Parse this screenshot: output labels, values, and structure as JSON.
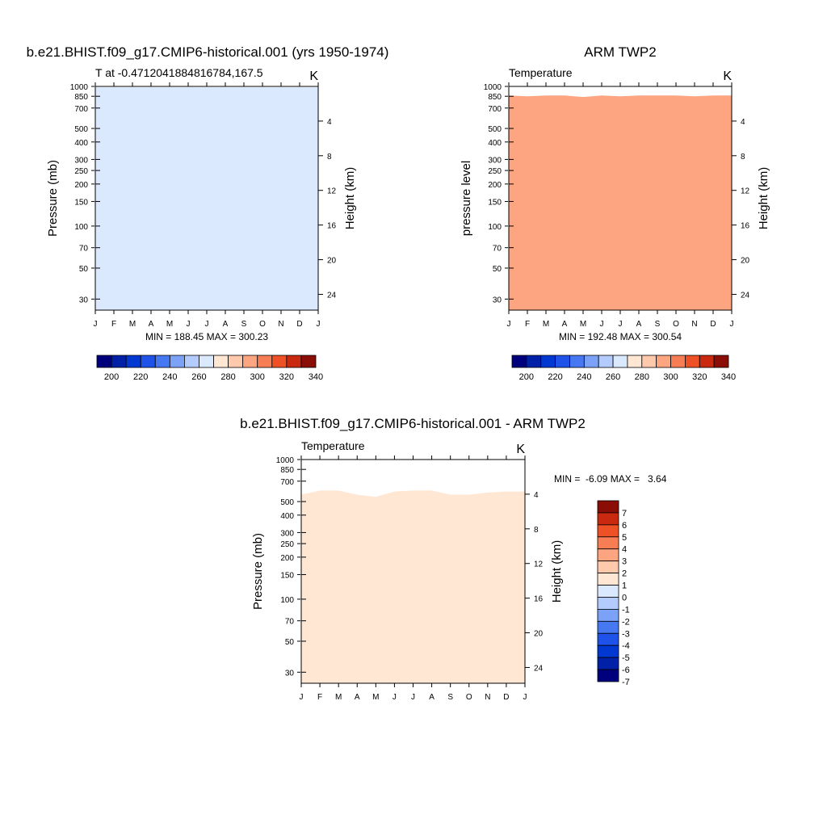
{
  "colors": {
    "abs_palette": [
      "#00007d",
      "#0021a7",
      "#0038d1",
      "#1f52e8",
      "#4678f2",
      "#7ca2f8",
      "#b4ccfd",
      "#dbe9ff",
      "#ffe7d4",
      "#ffc9ac",
      "#fda480",
      "#f77d55",
      "#ee5126",
      "#c8290f",
      "#8a0e05"
    ],
    "diff_palette": [
      "#00007d",
      "#0021a7",
      "#0038d1",
      "#1f52e8",
      "#4678f2",
      "#7ca2f8",
      "#b4ccfd",
      "#dbe9ff",
      "#ffe7d4",
      "#ffc9ac",
      "#fda480",
      "#f77d55",
      "#ee5126",
      "#c8290f",
      "#8a0e05"
    ]
  },
  "chart_data": [
    {
      "type": "heatmap",
      "title": "b.e21.BHIST.f09_g17.CMIP6-historical.001 (yrs 1950-1974)",
      "left_label": "T at -0.4712041884816784,167.5",
      "right_label": "K",
      "ylabel": "Pressure (mb)",
      "y2label": "Height (km)",
      "x_ticks": [
        "J",
        "F",
        "M",
        "A",
        "M",
        "J",
        "J",
        "A",
        "S",
        "O",
        "N",
        "D",
        "J"
      ],
      "y_ticks": [
        30,
        50,
        70,
        100,
        150,
        200,
        250,
        300,
        400,
        500,
        700,
        850,
        1000
      ],
      "y2_ticks": [
        24,
        20,
        16,
        12,
        8,
        4
      ],
      "ylim": [
        1000,
        25
      ],
      "y_scale": "log",
      "stats": "MIN = 188.45 MAX = 300.23",
      "levels": [
        200,
        210,
        220,
        230,
        240,
        250,
        260,
        270,
        280,
        290,
        300,
        310,
        320,
        330,
        340
      ],
      "colorbar_labels": [
        "200",
        "220",
        "240",
        "260",
        "280",
        "300",
        "320",
        "340"
      ],
      "bands": [
        {
          "class": 2,
          "top": [
            25,
            25,
            25,
            25,
            25,
            25,
            25,
            25,
            25,
            25,
            25,
            25,
            25
          ]
        },
        {
          "class": 1,
          "top": [
            42,
            44,
            44,
            45,
            47,
            50,
            52,
            54,
            52,
            50,
            47,
            44,
            42
          ]
        },
        {
          "class": 0,
          "top": [
            60,
            60,
            61,
            62,
            64,
            66,
            69,
            70,
            68,
            65,
            63,
            61,
            60
          ]
        },
        {
          "class": 1,
          "top": [
            136,
            136,
            136,
            136,
            136,
            136,
            136,
            136,
            136,
            136,
            136,
            136,
            136
          ]
        },
        {
          "class": 2,
          "top": [
            178,
            178,
            178,
            178,
            178,
            178,
            178,
            178,
            178,
            178,
            178,
            178,
            178
          ]
        },
        {
          "class": 3,
          "top": [
            218,
            218,
            218,
            218,
            218,
            218,
            218,
            218,
            218,
            218,
            218,
            218,
            218
          ]
        },
        {
          "class": 4,
          "top": [
            262,
            262,
            262,
            262,
            262,
            262,
            262,
            262,
            262,
            262,
            262,
            262,
            262
          ]
        },
        {
          "class": 5,
          "top": [
            318,
            318,
            318,
            318,
            318,
            318,
            318,
            318,
            318,
            318,
            318,
            318,
            318
          ]
        },
        {
          "class": 6,
          "top": [
            385,
            385,
            385,
            385,
            385,
            385,
            385,
            385,
            385,
            385,
            385,
            385,
            385
          ]
        },
        {
          "class": 7,
          "top": [
            470,
            470,
            470,
            470,
            470,
            470,
            470,
            470,
            470,
            470,
            470,
            470,
            470
          ]
        },
        {
          "class": 8,
          "top": [
            575,
            575,
            575,
            575,
            575,
            575,
            575,
            575,
            575,
            575,
            575,
            575,
            575
          ]
        },
        {
          "class": 9,
          "top": [
            715,
            715,
            715,
            715,
            715,
            715,
            715,
            715,
            715,
            715,
            715,
            715,
            715
          ]
        },
        {
          "class": 10,
          "top": [
            855,
            855,
            855,
            855,
            855,
            855,
            855,
            855,
            855,
            855,
            855,
            855,
            855
          ]
        },
        {
          "class": 7,
          "top": [
            985,
            985,
            985,
            985,
            985,
            985,
            985,
            985,
            985,
            985,
            985,
            985,
            985
          ]
        }
      ]
    },
    {
      "type": "heatmap",
      "title": "ARM TWP2",
      "left_label": "Temperature",
      "right_label": "K",
      "ylabel": "pressure level",
      "y2label": "Height (km)",
      "x_ticks": [
        "J",
        "F",
        "M",
        "A",
        "M",
        "J",
        "J",
        "A",
        "S",
        "O",
        "N",
        "D",
        "J"
      ],
      "y_ticks": [
        30,
        50,
        70,
        100,
        150,
        200,
        250,
        300,
        400,
        500,
        700,
        850,
        1000
      ],
      "y2_ticks": [
        24,
        20,
        16,
        12,
        8,
        4
      ],
      "ylim": [
        1000,
        25
      ],
      "y_scale": "log",
      "stats": "MIN = 192.48 MAX = 300.54",
      "levels": [
        200,
        210,
        220,
        230,
        240,
        250,
        260,
        270,
        280,
        290,
        300,
        310,
        320,
        330,
        340
      ],
      "colorbar_labels": [
        "200",
        "220",
        "240",
        "260",
        "280",
        "300",
        "320",
        "340"
      ],
      "bands": [
        {
          "class": 2,
          "top": [
            25,
            25,
            25,
            25,
            25,
            25,
            25,
            25,
            25,
            25,
            25,
            25,
            25
          ]
        },
        {
          "class": 1,
          "top": [
            37,
            38,
            40,
            41,
            44,
            46,
            48,
            46,
            44,
            41,
            40,
            38,
            37
          ]
        },
        {
          "class": 0,
          "top": [
            62,
            63,
            64,
            66,
            69,
            72,
            78,
            80,
            74,
            68,
            64,
            62,
            61
          ]
        },
        {
          "class": 1,
          "top": [
            136,
            136,
            136,
            136,
            136,
            136,
            136,
            136,
            136,
            136,
            136,
            136,
            136
          ]
        },
        {
          "class": 2,
          "top": [
            175,
            175,
            175,
            175,
            175,
            175,
            175,
            175,
            175,
            175,
            175,
            175,
            175
          ]
        },
        {
          "class": 3,
          "top": [
            215,
            215,
            215,
            215,
            215,
            215,
            215,
            215,
            215,
            215,
            215,
            215,
            215
          ]
        },
        {
          "class": 4,
          "top": [
            258,
            258,
            258,
            258,
            258,
            258,
            258,
            258,
            258,
            258,
            258,
            258,
            258
          ]
        },
        {
          "class": 5,
          "top": [
            312,
            312,
            312,
            312,
            312,
            312,
            312,
            312,
            312,
            312,
            312,
            312,
            312
          ]
        },
        {
          "class": 6,
          "top": [
            375,
            375,
            375,
            375,
            375,
            375,
            375,
            375,
            375,
            375,
            375,
            375,
            375
          ]
        },
        {
          "class": 7,
          "top": [
            450,
            450,
            450,
            450,
            450,
            450,
            450,
            450,
            450,
            450,
            450,
            450,
            450
          ]
        },
        {
          "class": 8,
          "top": [
            560,
            560,
            560,
            560,
            560,
            560,
            560,
            560,
            560,
            560,
            560,
            560,
            560
          ]
        },
        {
          "class": 9,
          "top": [
            700,
            700,
            700,
            700,
            700,
            700,
            700,
            700,
            700,
            700,
            700,
            700,
            700
          ]
        },
        {
          "class": 10,
          "top": [
            860,
            850,
            860,
            860,
            840,
            860,
            850,
            860,
            860,
            860,
            850,
            860,
            860
          ]
        }
      ]
    },
    {
      "type": "heatmap",
      "title": "b.e21.BHIST.f09_g17.CMIP6-historical.001 - ARM TWP2",
      "left_label": "Temperature",
      "right_label": "K",
      "ylabel": "Pressure (mb)",
      "y2label": "Height (km)",
      "x_ticks": [
        "J",
        "F",
        "M",
        "A",
        "M",
        "J",
        "J",
        "A",
        "S",
        "O",
        "N",
        "D",
        "J"
      ],
      "y_ticks": [
        30,
        50,
        70,
        100,
        150,
        200,
        250,
        300,
        400,
        500,
        700,
        850,
        1000
      ],
      "y2_ticks": [
        24,
        20,
        16,
        12,
        8,
        4
      ],
      "ylim": [
        1000,
        25
      ],
      "y_scale": "log",
      "stats": "MIN =  -6.09 MAX =   3.64",
      "levels": [
        -7,
        -6,
        -5,
        -4,
        -3,
        -2,
        -1,
        0,
        1,
        2,
        3,
        4,
        5,
        6,
        7
      ],
      "colorbar_labels": [
        "7",
        "6",
        "5",
        "4",
        "3",
        "2",
        "1",
        "0",
        "-1",
        "-2",
        "-3",
        "-4",
        "-5",
        "-6",
        "-7"
      ],
      "bands": [
        {
          "class": 9,
          "top": [
            25,
            25,
            25,
            25,
            25,
            25,
            25,
            25,
            25,
            25,
            25,
            25,
            25
          ]
        },
        {
          "class": 8,
          "top": [
            34,
            35,
            33,
            31,
            30,
            32,
            34,
            36,
            38,
            38,
            37,
            36,
            35
          ]
        },
        {
          "class": 7,
          "top": [
            42,
            43,
            41,
            37,
            35,
            37,
            41,
            46,
            50,
            51,
            49,
            46,
            45
          ]
        },
        {
          "class": 6,
          "top": [
            48,
            49,
            47,
            42,
            40,
            42,
            47,
            53,
            57,
            58,
            55,
            52,
            51
          ]
        },
        {
          "class": 5,
          "top": [
            53,
            54,
            52,
            47,
            45,
            48,
            53,
            58,
            62,
            62,
            60,
            57,
            56
          ]
        },
        {
          "class": 4,
          "top": [
            58,
            59,
            58,
            54,
            51,
            55,
            59,
            63,
            66,
            66,
            64,
            61,
            60
          ]
        },
        {
          "class": 3,
          "top": [
            63,
            64,
            64,
            61,
            59,
            63,
            65,
            67,
            69,
            69,
            68,
            66,
            65
          ]
        },
        {
          "class": 2,
          "top": [
            80,
            81,
            82,
            81,
            80,
            81,
            82,
            83,
            83,
            83,
            83,
            82,
            82
          ]
        },
        {
          "class": 3,
          "top": [
            96,
            96,
            97,
            97,
            96,
            96,
            97,
            98,
            98,
            98,
            98,
            97,
            97
          ]
        },
        {
          "class": 5,
          "top": [
            110,
            110,
            110,
            110,
            110,
            110,
            110,
            110,
            110,
            110,
            110,
            110,
            110
          ]
        },
        {
          "class": 7,
          "top": [
            118,
            118,
            118,
            118,
            118,
            118,
            118,
            118,
            118,
            118,
            118,
            118,
            118
          ]
        },
        {
          "class": 8,
          "top": [
            124,
            124,
            124,
            124,
            124,
            124,
            124,
            124,
            124,
            124,
            124,
            124,
            124
          ]
        },
        {
          "class": 9,
          "top": [
            440,
            470,
            470,
            420,
            400,
            460,
            470,
            470,
            430,
            420,
            450,
            460,
            460
          ]
        },
        {
          "class": 8,
          "top": [
            560,
            600,
            600,
            560,
            540,
            590,
            600,
            600,
            560,
            560,
            580,
            590,
            590
          ]
        }
      ]
    }
  ]
}
